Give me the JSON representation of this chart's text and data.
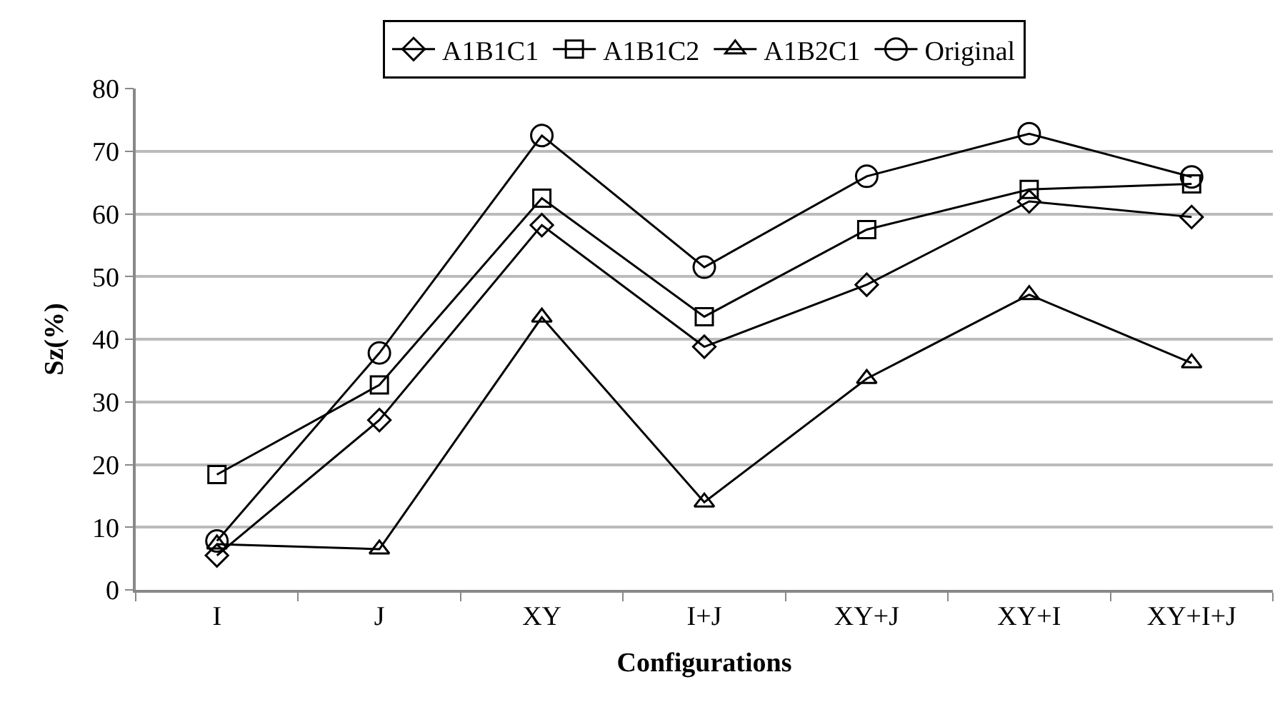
{
  "chart_data": {
    "type": "line",
    "xlabel": "Configurations",
    "ylabel": "Sz(%)",
    "categories": [
      "I",
      "J",
      "XY",
      "I+J",
      "XY+J",
      "XY+I",
      "XY+I+J"
    ],
    "series": [
      {
        "name": "A1B1C1",
        "color": "#000000",
        "marker": "diamond",
        "values": [
          5.5,
          27.1,
          58.2,
          38.8,
          48.7,
          62.0,
          59.5
        ]
      },
      {
        "name": "A1B1C2",
        "color": "#000000",
        "marker": "square",
        "values": [
          18.4,
          32.7,
          62.5,
          43.6,
          57.5,
          63.9,
          64.8
        ]
      },
      {
        "name": "A1B2C1",
        "color": "#000000",
        "marker": "triangle",
        "values": [
          7.3,
          6.5,
          43.5,
          14.0,
          33.7,
          47.1,
          36.2
        ]
      },
      {
        "name": "Original",
        "color": "#000000",
        "marker": "circle",
        "values": [
          7.8,
          37.8,
          72.5,
          51.5,
          66.0,
          72.8,
          65.9
        ]
      }
    ],
    "ylim": [
      0,
      80
    ],
    "yticks": [
      0,
      10,
      20,
      30,
      40,
      50,
      60,
      70,
      80
    ],
    "grid": "y",
    "legend": "top",
    "line_style": "solid"
  }
}
